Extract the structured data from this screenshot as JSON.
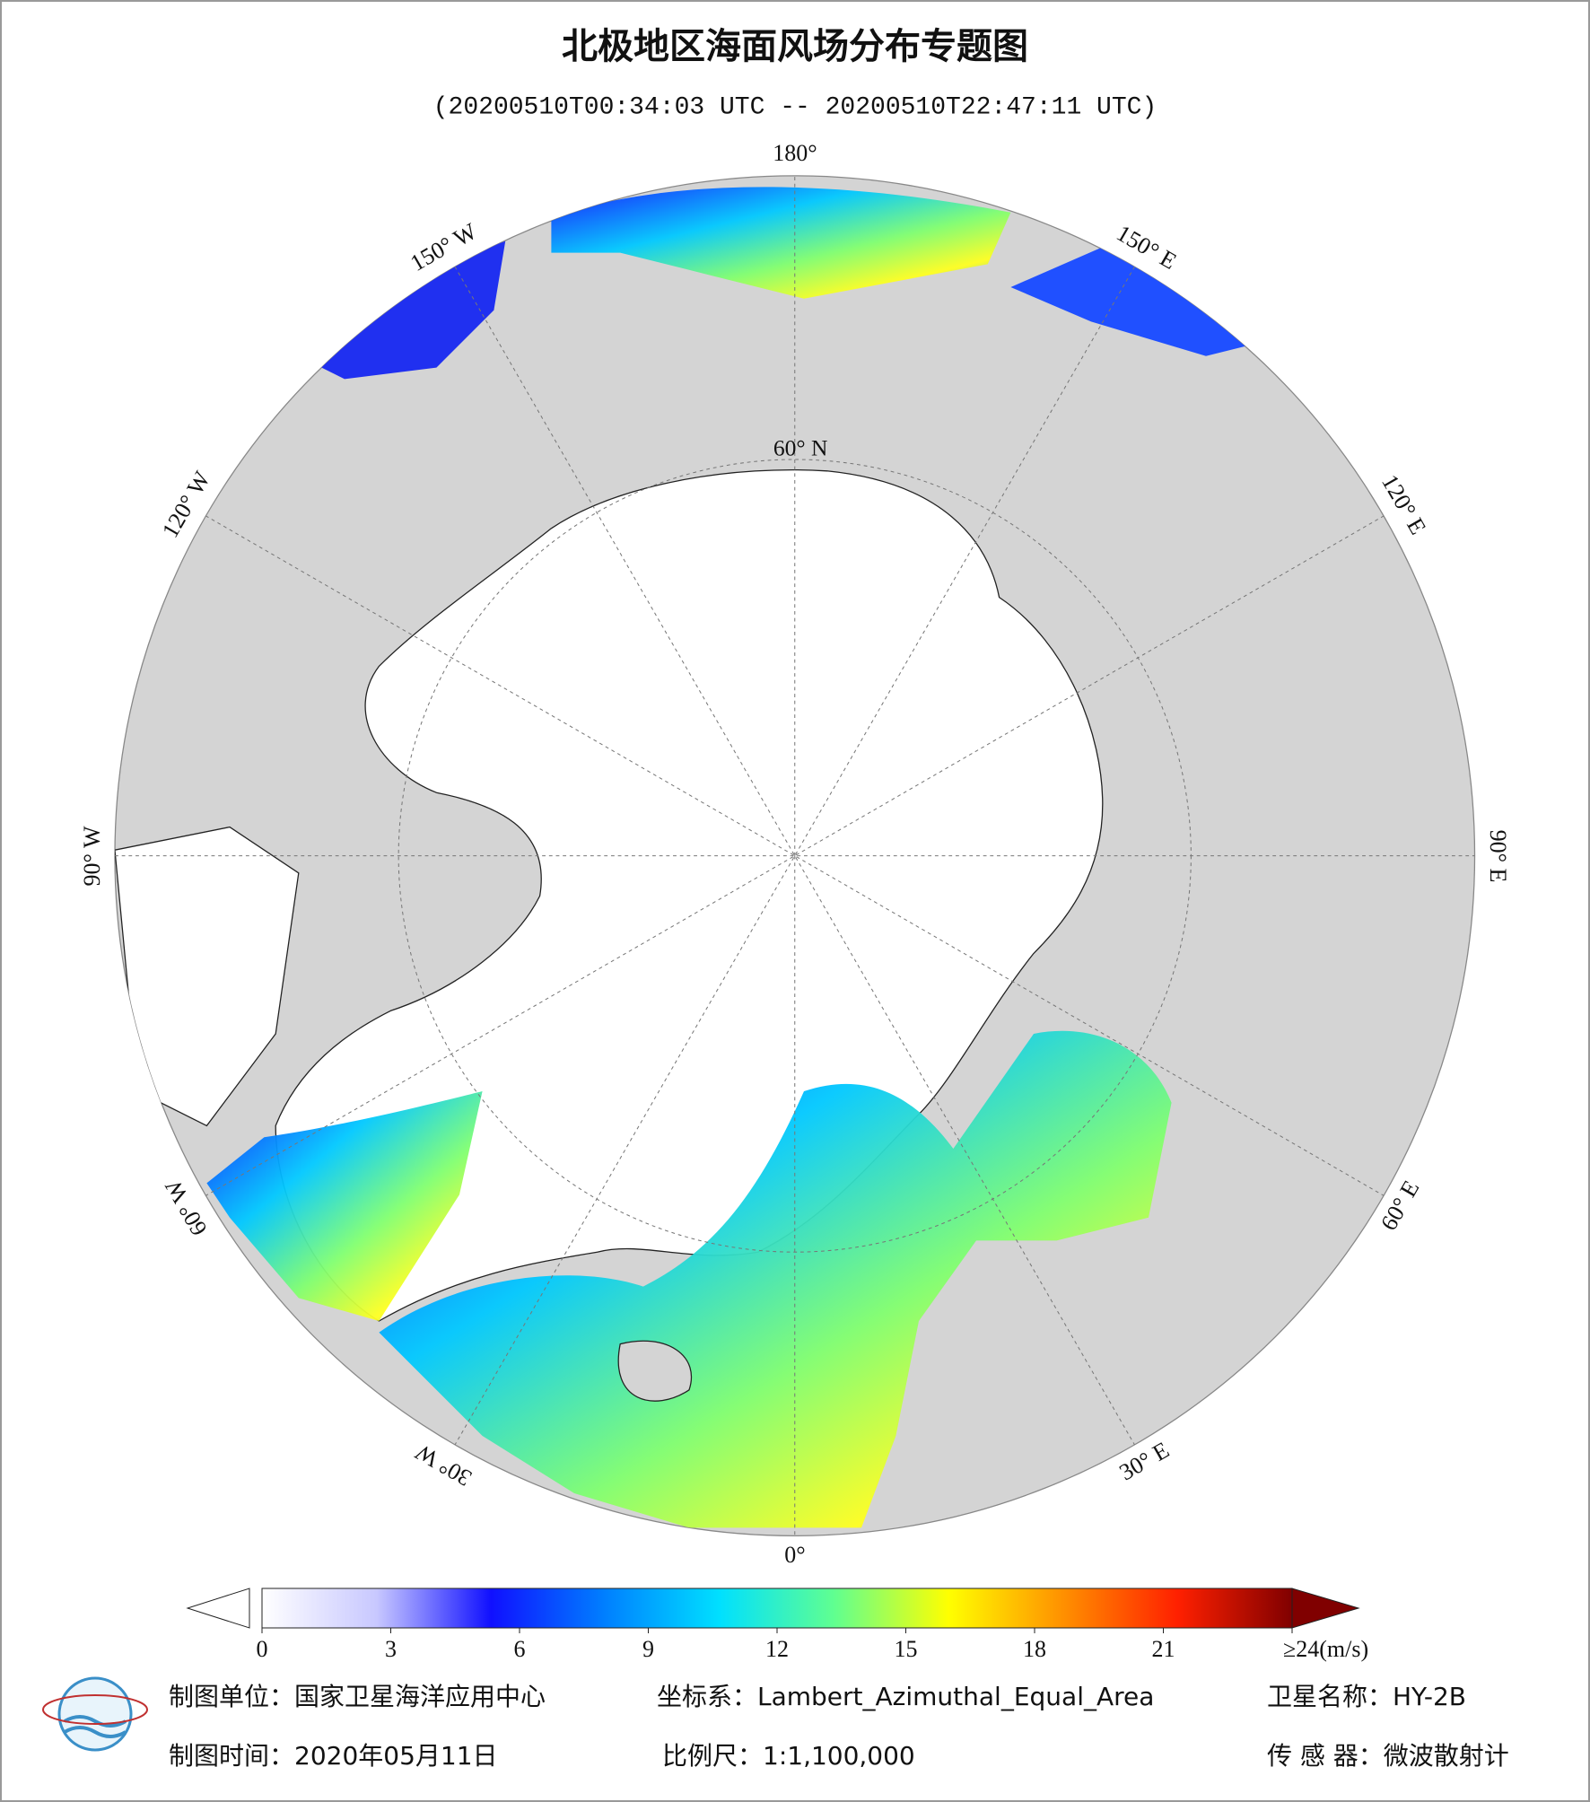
{
  "header": {
    "title": "北极地区海面风场分布专题图",
    "subtitle": "(20200510T00:34:03 UTC -- 20200510T22:47:11 UTC)"
  },
  "map": {
    "lon_ticks": [
      {
        "value": 180,
        "label": "180°"
      },
      {
        "value": -150,
        "label": "150° W"
      },
      {
        "value": -120,
        "label": "120° W"
      },
      {
        "value": -90,
        "label": "90° W"
      },
      {
        "value": -60,
        "label": "60° W"
      },
      {
        "value": -30,
        "label": "30° W"
      },
      {
        "value": 0,
        "label": "0°"
      },
      {
        "value": 30,
        "label": "30° E"
      },
      {
        "value": 60,
        "label": "60° E"
      },
      {
        "value": 90,
        "label": "90° E"
      },
      {
        "value": 120,
        "label": "120° E"
      },
      {
        "value": 150,
        "label": "150° E"
      }
    ],
    "lat_label": "60° N"
  },
  "colorbar": {
    "lim": [
      0,
      24
    ],
    "ticks": [
      0,
      3,
      6,
      9,
      12,
      15,
      18,
      21,
      {
        "value": 24,
        "label": "≥24(m/s)"
      }
    ],
    "colors": [
      "#ffffff",
      "#c8c8ff",
      "#1010ff",
      "#0080ff",
      "#00e0ff",
      "#60ff90",
      "#ffff00",
      "#ff9000",
      "#ff2000",
      "#800000"
    ]
  },
  "footer": [
    "制图单位：国家卫星海洋应用中心",
    "坐标系：Lambert_Azimuthal_Equal_Area",
    "卫星名称：HY-2B",
    "制图时间：2020年05月11日",
    "比例尺：1:1,100,000",
    "传 感 器：微波散射计"
  ]
}
